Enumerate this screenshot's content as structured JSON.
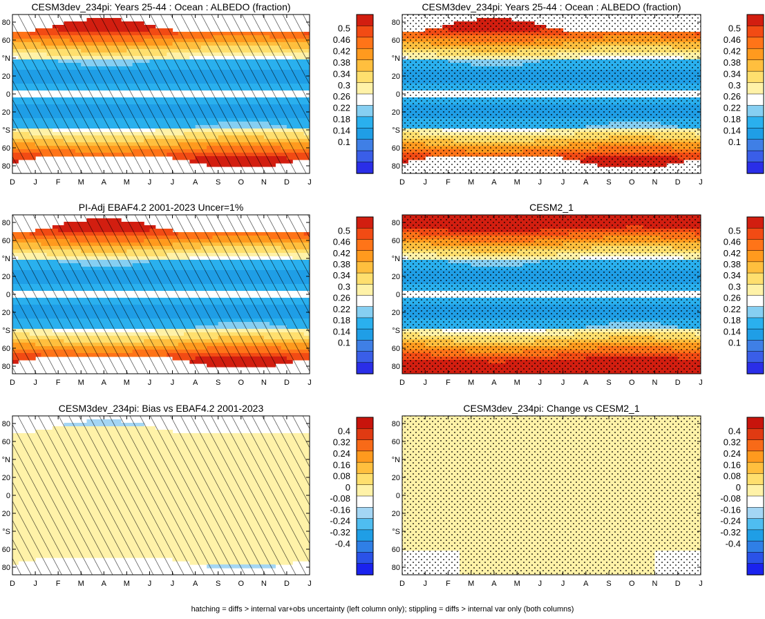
{
  "footnote": "hatching = diffs > internal var+obs uncertainty (left column only); stippling = diffs > internal var only (both columns)",
  "chart_data": [
    {
      "type": "heatmap",
      "title": "CESM3dev_234pi: Years 25-44 : Ocean : ALBEDO (fraction)",
      "x_ticks": [
        "D",
        "J",
        "F",
        "M",
        "A",
        "M",
        "J",
        "J",
        "A",
        "S",
        "O",
        "N",
        "D",
        "J"
      ],
      "y_ticks": [
        "80",
        "60",
        "°N",
        "20",
        "0",
        "20",
        "°S",
        "60",
        "80"
      ],
      "ylim": [
        -90,
        90
      ],
      "colorbar": {
        "labels": [
          "0.5",
          "0.46",
          "0.42",
          "0.38",
          "0.34",
          "0.3",
          "0.26",
          "0.22",
          "0.18",
          "0.14",
          "0.1"
        ],
        "range": [
          0.08,
          0.52
        ]
      },
      "field": "albedo",
      "overlay": "hatch",
      "data_hint": "albedo low (~0.18-0.24) in tropics/subtropics, white (~0.3) near equator, rising to >0.5 at high latitudes, polar edges follow the seasonal cycle"
    },
    {
      "type": "heatmap",
      "title": "CESM3dev_234pi: Years 25-44 : Ocean : ALBEDO (fraction)",
      "x_ticks": [
        "D",
        "J",
        "F",
        "M",
        "A",
        "M",
        "J",
        "J",
        "A",
        "S",
        "O",
        "N",
        "D",
        "J"
      ],
      "y_ticks": [
        "80",
        "60",
        "°N",
        "20",
        "0",
        "20",
        "°S",
        "60",
        "80"
      ],
      "ylim": [
        -90,
        90
      ],
      "colorbar": {
        "labels": [
          "0.5",
          "0.46",
          "0.42",
          "0.38",
          "0.34",
          "0.3",
          "0.26",
          "0.22",
          "0.18",
          "0.14",
          "0.1"
        ],
        "range": [
          0.08,
          0.52
        ]
      },
      "field": "albedo",
      "overlay": "stipple"
    },
    {
      "type": "heatmap",
      "title": "PI-Adj EBAF4.2 2001-2023 Uncer=1%",
      "x_ticks": [
        "D",
        "J",
        "F",
        "M",
        "A",
        "M",
        "J",
        "J",
        "A",
        "S",
        "O",
        "N",
        "D",
        "J"
      ],
      "y_ticks": [
        "80",
        "60",
        "°N",
        "20",
        "0",
        "20",
        "°S",
        "60",
        "80"
      ],
      "ylim": [
        -90,
        90
      ],
      "colorbar": {
        "labels": [
          "0.5",
          "0.46",
          "0.42",
          "0.38",
          "0.34",
          "0.3",
          "0.26",
          "0.22",
          "0.18",
          "0.14",
          "0.1"
        ],
        "range": [
          0.08,
          0.52
        ]
      },
      "field": "albedo",
      "overlay": "hatch"
    },
    {
      "type": "heatmap",
      "title": "CESM2_1",
      "x_ticks": [
        "D",
        "J",
        "F",
        "M",
        "A",
        "M",
        "J",
        "J",
        "A",
        "S",
        "O",
        "N",
        "D",
        "J"
      ],
      "y_ticks": [
        "80",
        "60",
        "°N",
        "20",
        "0",
        "20",
        "°S",
        "60",
        "80"
      ],
      "ylim": [
        -90,
        90
      ],
      "colorbar": {
        "labels": [
          "0.5",
          "0.46",
          "0.42",
          "0.38",
          "0.34",
          "0.3",
          "0.26",
          "0.22",
          "0.18",
          "0.14",
          "0.1"
        ],
        "range": [
          0.08,
          0.52
        ]
      },
      "field": "albedo_full",
      "overlay": "stipple"
    },
    {
      "type": "heatmap",
      "title": "CESM3dev_234pi: Bias vs EBAF4.2 2001-2023",
      "x_ticks": [
        "D",
        "J",
        "F",
        "M",
        "A",
        "M",
        "J",
        "J",
        "A",
        "S",
        "O",
        "N",
        "D",
        "J"
      ],
      "y_ticks": [
        "80",
        "60",
        "°N",
        "20",
        "0",
        "20",
        "°S",
        "60",
        "80"
      ],
      "ylim": [
        -90,
        90
      ],
      "colorbar": {
        "labels": [
          "0.4",
          "0.32",
          "0.24",
          "0.16",
          "0.08",
          "0",
          "-0.08",
          "-0.16",
          "-0.24",
          "-0.32",
          "-0.4"
        ],
        "range": [
          -0.44,
          0.44
        ]
      },
      "field": "bias",
      "overlay": "hatch",
      "data_hint": "mostly near zero; small positive (~+0.04) patches in NH midlatitudes, SH midlatitudes and near the equator; negative (~-0.08 to -0.4) at polar edges"
    },
    {
      "type": "heatmap",
      "title": "CESM3dev_234pi: Change vs CESM2_1",
      "x_ticks": [
        "D",
        "J",
        "F",
        "M",
        "A",
        "M",
        "J",
        "J",
        "A",
        "S",
        "O",
        "N",
        "D",
        "J"
      ],
      "y_ticks": [
        "80",
        "60",
        "°N",
        "20",
        "0",
        "20",
        "°S",
        "60",
        "80"
      ],
      "ylim": [
        -90,
        90
      ],
      "colorbar": {
        "labels": [
          "0.4",
          "0.32",
          "0.24",
          "0.16",
          "0.08",
          "0",
          "-0.08",
          "-0.16",
          "-0.24",
          "-0.32",
          "-0.4"
        ],
        "range": [
          -0.44,
          0.44
        ]
      },
      "field": "change",
      "overlay": "stipple",
      "data_hint": "mostly near zero; negative (~-0.04) patches in the far southern ocean in Dec-Feb and Nov-Dec"
    }
  ],
  "colors": {
    "albedo_scale": [
      "#2a2ee8",
      "#3a5ee8",
      "#3f7fe6",
      "#1f9ee6",
      "#2ab0ee",
      "#86cff2",
      "#ffffff",
      "#fff2a8",
      "#ffdf6e",
      "#ffbf3e",
      "#ff9a1e",
      "#ff7418",
      "#f24b14",
      "#d21e10"
    ],
    "diff_scale": [
      "#1a22ee",
      "#2a52e8",
      "#2f7fe6",
      "#1f9ee6",
      "#4fbdf0",
      "#a4d6f4",
      "#ffffff",
      "#fff2a8",
      "#ffdf6e",
      "#ffbf3e",
      "#ff9a1e",
      "#f86a18",
      "#e03a12",
      "#c8140c"
    ]
  }
}
